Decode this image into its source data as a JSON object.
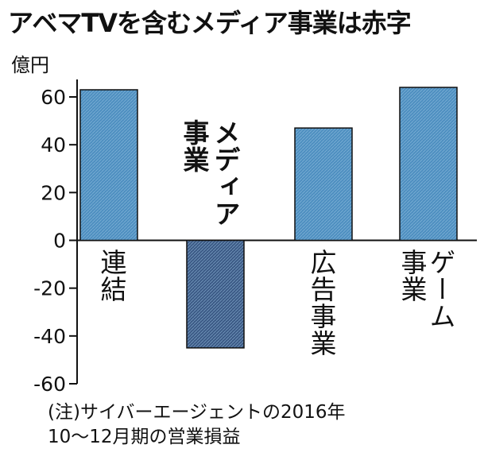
{
  "chart_data": {
    "type": "bar",
    "title": "アベマTVを含むメディア事業は赤字",
    "ylabel": "億円",
    "ylim": [
      -60,
      70
    ],
    "yticks": [
      60,
      40,
      20,
      0,
      -20,
      -40,
      -60
    ],
    "tick_labels": [
      "60",
      "40",
      "20",
      "0",
      "-20",
      "-40",
      "-60"
    ],
    "grid": false,
    "categories": [
      {
        "lines": [
          "連結"
        ]
      },
      {
        "lines": [
          "メディア",
          "事業"
        ]
      },
      {
        "lines": [
          "広告事業"
        ]
      },
      {
        "lines": [
          "ゲーム",
          "事業"
        ]
      }
    ],
    "values": [
      63,
      -45,
      47,
      64
    ],
    "colors": {
      "positive_fill": "#4e8fc0",
      "negative_fill": "#3c5a86",
      "hatch": "#9cc6e4",
      "border": "#111111"
    },
    "note": [
      "(注)サイバーエージェントの2016年",
      "10〜12月期の営業損益"
    ]
  }
}
